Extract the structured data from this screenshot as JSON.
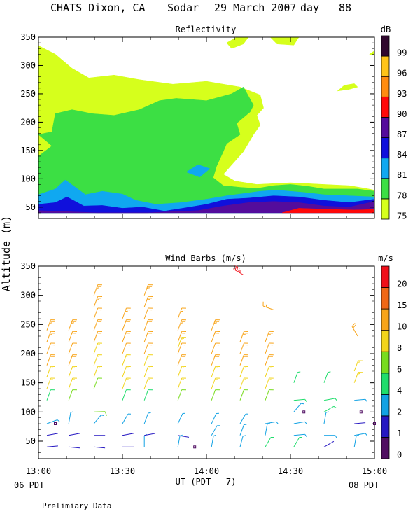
{
  "title": {
    "station": "CHATS Dixon, CA",
    "instrument": "Sodar",
    "date": "29 March 2007",
    "day_label": "day",
    "day_number": "88"
  },
  "footer": {
    "left_time": "06 PDT",
    "right_time": "08 PDT",
    "xlabel": "UT  (PDT - 7)",
    "note": "Prelimiary Data"
  },
  "ylabel": "Altitude (m)",
  "colors": {
    "refl_scale": [
      "#d6ff1c",
      "#3cdf44",
      "#10a8f0",
      "#1010dc",
      "#540c9c",
      "#ff0808",
      "#ff8c10",
      "#ffc418",
      "#30082e"
    ],
    "wind_scale": [
      "#500e62",
      "#2618c2",
      "#12a2e4",
      "#20dd6c",
      "#78dc1e",
      "#f2d41a",
      "#f8a418",
      "#f06816",
      "#f0101a"
    ]
  },
  "chart_data": [
    {
      "type": "heatmap",
      "title": "Reflectivity",
      "ylabel": "Altitude (m)",
      "xlim": [
        13.0,
        15.0
      ],
      "ylim": [
        30,
        350
      ],
      "x_ticks": [
        "13:00",
        "13:30",
        "14:00",
        "14:30",
        "15:00"
      ],
      "y_ticks": [
        50,
        100,
        150,
        200,
        250,
        300,
        350
      ],
      "colorbar": {
        "unit": "dB",
        "labels": [
          "75",
          "78",
          "81",
          "84",
          "87",
          "90",
          "93",
          "96",
          "99"
        ]
      },
      "level_bounds": [
        75,
        78,
        81,
        84,
        87,
        90,
        93,
        96,
        99
      ],
      "regions": [
        {
          "level": 75,
          "points": [
            [
              13.0,
              40
            ],
            [
              13.0,
              335
            ],
            [
              13.1,
              320
            ],
            [
              13.2,
              295
            ],
            [
              13.3,
              278
            ],
            [
              13.45,
              283
            ],
            [
              13.6,
              275
            ],
            [
              13.8,
              267
            ],
            [
              14.0,
              272
            ],
            [
              14.2,
              262
            ],
            [
              14.32,
              248
            ],
            [
              14.34,
              225
            ],
            [
              14.3,
              212
            ],
            [
              14.32,
              195
            ],
            [
              14.28,
              178
            ],
            [
              14.22,
              148
            ],
            [
              14.16,
              128
            ],
            [
              14.1,
              108
            ],
            [
              14.17,
              96
            ],
            [
              14.3,
              90
            ],
            [
              14.5,
              93
            ],
            [
              14.7,
              90
            ],
            [
              14.85,
              88
            ],
            [
              14.95,
              83
            ],
            [
              15.0,
              80
            ],
            [
              15.0,
              40
            ]
          ]
        },
        {
          "level": 75,
          "points": [
            [
              14.15,
              330
            ],
            [
              14.22,
              338
            ],
            [
              14.25,
              350
            ],
            [
              14.18,
              350
            ],
            [
              14.12,
              340
            ]
          ]
        },
        {
          "level": 75,
          "points": [
            [
              14.38,
              350
            ],
            [
              14.42,
              338
            ],
            [
              14.52,
              336
            ],
            [
              14.55,
              350
            ]
          ]
        },
        {
          "level": 75,
          "points": [
            [
              14.78,
              255
            ],
            [
              14.82,
              265
            ],
            [
              14.88,
              268
            ],
            [
              14.9,
              262
            ],
            [
              14.85,
              258
            ]
          ]
        },
        {
          "level": 75,
          "points": [
            [
              14.97,
              320
            ],
            [
              15.0,
              318
            ],
            [
              15.0,
              326
            ]
          ]
        },
        {
          "level": 78,
          "points": [
            [
              13.0,
              40
            ],
            [
              13.0,
              140
            ],
            [
              13.08,
              158
            ],
            [
              13.0,
              178
            ],
            [
              13.08,
              183
            ],
            [
              13.1,
              215
            ],
            [
              13.2,
              222
            ],
            [
              13.32,
              215
            ],
            [
              13.45,
              212
            ],
            [
              13.6,
              222
            ],
            [
              13.72,
              238
            ],
            [
              13.82,
              242
            ],
            [
              14.0,
              238
            ],
            [
              14.15,
              250
            ],
            [
              14.22,
              262
            ],
            [
              14.28,
              230
            ],
            [
              14.26,
              218
            ],
            [
              14.18,
              198
            ],
            [
              14.2,
              178
            ],
            [
              14.12,
              162
            ],
            [
              14.1,
              148
            ],
            [
              14.06,
              122
            ],
            [
              14.04,
              102
            ],
            [
              14.1,
              88
            ],
            [
              14.2,
              85
            ],
            [
              14.3,
              83
            ],
            [
              14.4,
              88
            ],
            [
              14.5,
              90
            ],
            [
              14.6,
              87
            ],
            [
              14.7,
              82
            ],
            [
              14.9,
              82
            ],
            [
              15.0,
              78
            ],
            [
              15.0,
              40
            ]
          ]
        },
        {
          "level": 81,
          "points": [
            [
              13.0,
              40
            ],
            [
              13.0,
              72
            ],
            [
              13.1,
              82
            ],
            [
              13.16,
              98
            ],
            [
              13.28,
              72
            ],
            [
              13.38,
              78
            ],
            [
              13.5,
              73
            ],
            [
              13.58,
              62
            ],
            [
              13.7,
              55
            ],
            [
              13.85,
              58
            ],
            [
              14.0,
              64
            ],
            [
              14.12,
              70
            ],
            [
              14.22,
              74
            ],
            [
              14.32,
              78
            ],
            [
              14.42,
              80
            ],
            [
              14.58,
              76
            ],
            [
              14.7,
              72
            ],
            [
              14.85,
              70
            ],
            [
              15.0,
              68
            ],
            [
              15.0,
              40
            ]
          ]
        },
        {
          "level": 81,
          "points": [
            [
              13.88,
              112
            ],
            [
              13.95,
              125
            ],
            [
              14.02,
              118
            ],
            [
              13.96,
              103
            ]
          ]
        },
        {
          "level": 84,
          "points": [
            [
              13.0,
              40
            ],
            [
              13.0,
              55
            ],
            [
              13.1,
              58
            ],
            [
              13.17,
              68
            ],
            [
              13.27,
              52
            ],
            [
              13.38,
              53
            ],
            [
              13.5,
              48
            ],
            [
              13.62,
              50
            ],
            [
              13.75,
              43
            ],
            [
              13.9,
              50
            ],
            [
              14.0,
              55
            ],
            [
              14.12,
              64
            ],
            [
              14.25,
              66
            ],
            [
              14.4,
              70
            ],
            [
              14.55,
              68
            ],
            [
              14.7,
              62
            ],
            [
              14.85,
              58
            ],
            [
              15.0,
              64
            ],
            [
              15.0,
              40
            ]
          ]
        },
        {
          "level": 87,
          "points": [
            [
              13.0,
              40
            ],
            [
              13.0,
              44
            ],
            [
              13.35,
              40
            ],
            [
              13.65,
              40
            ],
            [
              13.8,
              42
            ],
            [
              13.95,
              44
            ],
            [
              14.1,
              52
            ],
            [
              14.25,
              58
            ],
            [
              14.4,
              60
            ],
            [
              14.55,
              58
            ],
            [
              14.7,
              52
            ],
            [
              14.85,
              50
            ],
            [
              15.0,
              60
            ],
            [
              15.0,
              40
            ]
          ]
        },
        {
          "level": 90,
          "points": [
            [
              14.45,
              40
            ],
            [
              14.55,
              48
            ],
            [
              14.75,
              46
            ],
            [
              14.88,
              45
            ],
            [
              15.0,
              46
            ],
            [
              15.0,
              40
            ]
          ]
        }
      ]
    },
    {
      "type": "scatter",
      "title": "Wind Barbs (m/s)",
      "ylabel": "Altitude (m)",
      "xlabel": "UT  (PDT - 7)",
      "xlim": [
        13.0,
        15.0
      ],
      "ylim": [
        20,
        350
      ],
      "x_ticks": [
        "13:00",
        "13:30",
        "14:00",
        "14:30",
        "15:00"
      ],
      "y_ticks": [
        50,
        100,
        150,
        200,
        250,
        300,
        350
      ],
      "colorbar": {
        "unit": "m/s",
        "labels": [
          "0",
          "1",
          "2",
          "4",
          "6",
          "8",
          "10",
          "15",
          "20"
        ]
      },
      "speed_bounds": [
        0,
        1,
        2,
        4,
        6,
        8,
        10,
        15,
        20,
        25
      ],
      "columns": [
        {
          "time": 13.05,
          "top": 240,
          "windows": [
            {
              "h": 40,
              "s": 1.5,
              "d": 85
            },
            {
              "h": 60,
              "s": 1.5,
              "d": 80
            },
            {
              "h": 80,
              "s": 3,
              "d": 70
            },
            {
              "h": 120,
              "s": 5,
              "d": 20
            }
          ]
        },
        {
          "time": 13.18,
          "top": 255,
          "windows": [
            {
              "h": 40,
              "s": 1.5,
              "d": 95
            },
            {
              "h": 60,
              "s": 1.5,
              "d": 80
            },
            {
              "h": 80,
              "s": 3.5,
              "d": 10
            },
            {
              "h": 120,
              "s": 6,
              "d": 20
            }
          ]
        },
        {
          "time": 13.33,
          "top": 300,
          "windows": [
            {
              "h": 40,
              "s": 1.5,
              "d": 95
            },
            {
              "h": 60,
              "s": 1.5,
              "d": 90
            },
            {
              "h": 80,
              "s": 3,
              "d": 40
            },
            {
              "h": 100,
              "s": 6,
              "d": 88
            },
            {
              "h": 140,
              "s": 6,
              "d": 20
            }
          ]
        },
        {
          "time": 13.5,
          "top": 275,
          "windows": [
            {
              "h": 40,
              "s": 1.2,
              "d": 90
            },
            {
              "h": 60,
              "s": 1.5,
              "d": 80
            },
            {
              "h": 80,
              "s": 3,
              "d": 30
            },
            {
              "h": 120,
              "s": 5,
              "d": 20
            }
          ]
        },
        {
          "time": 13.63,
          "top": 300,
          "windows": [
            {
              "h": 40,
              "s": 3,
              "d": 0
            },
            {
              "h": 60,
              "s": 1.5,
              "d": 80
            },
            {
              "h": 80,
              "s": 3,
              "d": 20
            },
            {
              "h": 120,
              "s": 5,
              "d": 20
            }
          ]
        },
        {
          "time": 13.83,
          "top": 260,
          "windows": [
            {
              "h": 40,
              "s": 3,
              "d": 10
            },
            {
              "h": 60,
              "s": 1.5,
              "d": 100
            },
            {
              "h": 80,
              "s": 3,
              "d": 25
            },
            {
              "h": 120,
              "s": 6,
              "d": 20
            }
          ]
        },
        {
          "time": 14.03,
          "top": 255,
          "windows": [
            {
              "h": 40,
              "s": 3,
              "d": 10
            },
            {
              "h": 60,
              "s": 3,
              "d": 30
            },
            {
              "h": 80,
              "s": 3,
              "d": 25
            },
            {
              "h": 120,
              "s": 6,
              "d": 20
            }
          ]
        },
        {
          "time": 14.2,
          "top": 235,
          "windows": [
            {
              "h": 40,
              "s": 3,
              "d": 15
            },
            {
              "h": 60,
              "s": 3,
              "d": 20
            },
            {
              "h": 80,
              "s": 3,
              "d": 30
            },
            {
              "h": 120,
              "s": 6,
              "d": 20
            }
          ]
        },
        {
          "time": 14.35,
          "top": 230,
          "windows": [
            {
              "h": 40,
              "s": 4,
              "d": 30
            },
            {
              "h": 60,
              "s": 3,
              "d": 10
            },
            {
              "h": 80,
              "s": 3,
              "d": 80
            },
            {
              "h": 120,
              "s": 6,
              "d": 20
            }
          ]
        },
        {
          "time": 14.52,
          "top": 150,
          "windows": [
            {
              "h": 40,
              "s": 4,
              "d": 30
            },
            {
              "h": 60,
              "s": 3,
              "d": 85
            },
            {
              "h": 80,
              "s": 3,
              "d": 80
            },
            {
              "h": 100,
              "s": 3,
              "d": 40
            },
            {
              "h": 120,
              "s": 4,
              "d": 85
            },
            {
              "h": 150,
              "s": 4,
              "d": 20
            }
          ]
        },
        {
          "time": 14.7,
          "top": 150,
          "windows": [
            {
              "h": 40,
              "s": 1.5,
              "d": 60
            },
            {
              "h": 60,
              "s": 3,
              "d": 90
            },
            {
              "h": 80,
              "s": 3,
              "d": 10
            },
            {
              "h": 100,
              "s": 4,
              "d": 60
            },
            {
              "h": 120,
              "s": 4,
              "d": 80
            },
            {
              "h": 150,
              "s": 4,
              "d": 20
            }
          ]
        },
        {
          "time": 14.88,
          "top": 185,
          "windows": [
            {
              "h": 40,
              "s": 3,
              "d": 10
            },
            {
              "h": 60,
              "s": 3,
              "d": 80
            },
            {
              "h": 80,
              "s": 1.5,
              "d": 85
            },
            {
              "h": 120,
              "s": 3,
              "d": 85
            },
            {
              "h": 150,
              "s": 8,
              "d": 20
            }
          ]
        }
      ],
      "extra_barbs": [
        {
          "time": 13.83,
          "h": 210,
          "s": 9,
          "d": 20
        },
        {
          "time": 14.22,
          "h": 335,
          "s": 22,
          "d": 300
        },
        {
          "time": 14.4,
          "h": 275,
          "s": 12,
          "d": 290
        },
        {
          "time": 14.9,
          "h": 230,
          "s": 10,
          "d": 330
        }
      ],
      "calm_points": [
        {
          "time": 13.1,
          "h": 80
        },
        {
          "time": 13.93,
          "h": 40
        },
        {
          "time": 14.58,
          "h": 100
        },
        {
          "time": 14.92,
          "h": 100
        },
        {
          "time": 15.0,
          "h": 80
        }
      ]
    }
  ]
}
